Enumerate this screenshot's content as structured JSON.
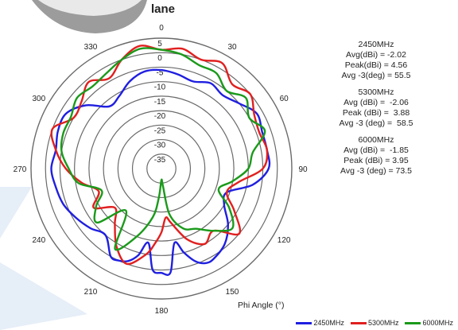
{
  "page": {
    "title": "lane",
    "axis_caption": "Phi Angle (°)"
  },
  "stats": [
    {
      "freq": "2450MHz",
      "lines": [
        "Avg(dBi) = -2.02",
        "Peak(dBi) = 4.56",
        "Avg -3(deg) = 55.5"
      ]
    },
    {
      "freq": "5300MHz",
      "lines": [
        "Avg (dBi) =  -2.06",
        "Peak (dBi) =  3.88",
        "Avg -3 (deg) =  58.5"
      ]
    },
    {
      "freq": "6000MHz",
      "lines": [
        "Avg (dBi) =  -1.85",
        "Peak (dBi) = 3.95",
        "Avg -3 (deg) = 73.5"
      ]
    }
  ],
  "legend": [
    "2450MHz",
    "5300MHz",
    "6000MHz"
  ],
  "colors": {
    "s2450": "#1f1fe0",
    "s5300": "#e0201f",
    "s6000": "#1a9a1a",
    "grid": "#6a6a6a",
    "stripe": "#e6eef8"
  },
  "chart_data": {
    "type": "polar-line",
    "angle_ticks": [
      0,
      30,
      60,
      90,
      120,
      150,
      180,
      210,
      240,
      270,
      300,
      330
    ],
    "radial_ticks": [
      5,
      0,
      -5,
      -10,
      -15,
      -20,
      -25,
      -30,
      -35
    ],
    "r_range": [
      -40,
      5
    ],
    "angle_direction": "clockwise",
    "zero_at": "top",
    "series": [
      {
        "name": "2450MHz",
        "theta": [
          0,
          10,
          20,
          30,
          40,
          50,
          60,
          70,
          80,
          90,
          100,
          110,
          120,
          130,
          140,
          150,
          155,
          160,
          165,
          170,
          175,
          180,
          185,
          190,
          195,
          200,
          205,
          210,
          220,
          230,
          240,
          250,
          260,
          270,
          280,
          290,
          300,
          310,
          320,
          330,
          340,
          350
        ],
        "r": [
          -6,
          -7,
          -8,
          -6,
          -7,
          -5,
          -2,
          -3,
          -3,
          -3,
          -8,
          -16,
          -15,
          -10,
          -6,
          -4,
          -4,
          -6,
          -10,
          -14,
          -4,
          -4,
          -5,
          -14,
          -9,
          -6,
          -5,
          -5,
          -10,
          -8,
          -6,
          -4,
          -3,
          -2,
          -3,
          -2,
          -2,
          -6,
          -12,
          -11,
          -8,
          -6
        ]
      },
      {
        "name": "5300MHz",
        "theta": [
          0,
          10,
          20,
          30,
          40,
          50,
          60,
          70,
          80,
          90,
          100,
          110,
          120,
          130,
          140,
          150,
          160,
          170,
          175,
          180,
          185,
          190,
          200,
          210,
          220,
          230,
          240,
          250,
          260,
          270,
          280,
          290,
          300,
          310,
          320,
          330,
          340,
          350
        ],
        "r": [
          1,
          2,
          0,
          2,
          -2,
          0,
          -3,
          -4,
          -3,
          -5,
          -13,
          -16,
          -11,
          -5,
          -12,
          -10,
          -14,
          -21,
          -23,
          -18,
          -14,
          -10,
          -5,
          -9,
          -15,
          -19,
          -13,
          -17,
          -12,
          -7,
          -3,
          0,
          -5,
          -4,
          -1,
          -4,
          0,
          3
        ]
      },
      {
        "name": "6000MHz",
        "theta": [
          0,
          10,
          20,
          30,
          40,
          50,
          60,
          70,
          80,
          90,
          100,
          110,
          120,
          130,
          140,
          150,
          160,
          170,
          175,
          180,
          185,
          190,
          200,
          210,
          220,
          230,
          240,
          250,
          260,
          270,
          280,
          290,
          300,
          310,
          320,
          330,
          340,
          350
        ],
        "r": [
          1,
          0,
          -2,
          -2,
          -5,
          -2,
          -5,
          -2,
          -8,
          -10,
          -15,
          -19,
          -13,
          -8,
          -12,
          -16,
          -18,
          -24,
          -34,
          -36,
          -30,
          -23,
          -15,
          -8,
          -21,
          -11,
          -14,
          -18,
          -11,
          -8,
          -5,
          -4,
          -4,
          -2,
          -3,
          -2,
          0,
          2
        ]
      }
    ]
  }
}
